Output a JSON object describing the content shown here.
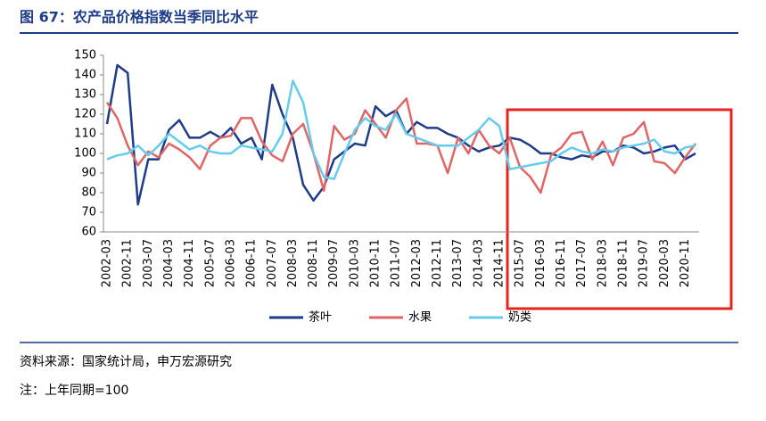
{
  "title": "图 67：农产品价格指数当季同比水平",
  "source": "资料来源：国家统计局，申万宏源研究",
  "note": "注：上年同期=100",
  "chart_data": {
    "type": "line",
    "categories": [
      "2002-03",
      null,
      "2002-11",
      null,
      "2003-07",
      null,
      "2004-03",
      null,
      "2004-11",
      null,
      "2005-07",
      null,
      "2006-03",
      null,
      "2006-11",
      null,
      "2007-07",
      null,
      "2008-03",
      null,
      "2008-11",
      null,
      "2009-07",
      null,
      "2010-03",
      null,
      "2010-11",
      null,
      "2011-07",
      null,
      "2012-03",
      null,
      "2012-11",
      null,
      "2013-07",
      null,
      "2014-03",
      null,
      "2014-11",
      null,
      "2015-07",
      null,
      "2016-03",
      null,
      "2016-11",
      null,
      "2017-07",
      null,
      "2018-03",
      null,
      "2018-11",
      null,
      "2019-07",
      null,
      "2020-03",
      null,
      "2020-11",
      null
    ],
    "series": [
      {
        "name": "茶叶",
        "color": "#1f3c88",
        "values": [
          115,
          145,
          141,
          74,
          97,
          97,
          112,
          117,
          108,
          108,
          111,
          108,
          113,
          105,
          108,
          97,
          135,
          120,
          108,
          84,
          76,
          83,
          97,
          101,
          105,
          104,
          124,
          119,
          122,
          110,
          116,
          113,
          113,
          110,
          108,
          104,
          101,
          103,
          104,
          108,
          107,
          104,
          100,
          100,
          98,
          97,
          99,
          98,
          101,
          101,
          104,
          103,
          100,
          101,
          103,
          104,
          97,
          100
        ]
      },
      {
        "name": "水果",
        "color": "#e06666",
        "values": [
          126,
          118,
          104,
          94,
          101,
          98,
          105,
          102,
          98,
          92,
          104,
          108,
          109,
          118,
          118,
          106,
          99,
          96,
          110,
          115,
          100,
          81,
          114,
          107,
          110,
          122,
          115,
          108,
          122,
          128,
          105,
          105,
          104,
          90,
          108,
          100,
          112,
          104,
          100,
          108,
          93,
          88,
          80,
          99,
          103,
          110,
          111,
          97,
          106,
          94,
          108,
          110,
          116,
          96,
          95,
          90,
          98,
          105
        ]
      },
      {
        "name": "奶类",
        "color": "#66ccee",
        "values": [
          97,
          99,
          100,
          104,
          99,
          104,
          110,
          106,
          102,
          104,
          101,
          100,
          100,
          104,
          103,
          102,
          101,
          110,
          137,
          126,
          100,
          88,
          87,
          100,
          112,
          118,
          114,
          112,
          120,
          110,
          108,
          106,
          104,
          104,
          104,
          108,
          112,
          118,
          114,
          92,
          93,
          94,
          95,
          96,
          100,
          103,
          101,
          100,
          102,
          101,
          103,
          104,
          105,
          107,
          101,
          100,
          103,
          104
        ]
      }
    ],
    "ylim": [
      60,
      150
    ],
    "yticks": [
      60,
      70,
      80,
      90,
      100,
      110,
      120,
      130,
      140,
      150
    ],
    "legend": "bottom"
  }
}
